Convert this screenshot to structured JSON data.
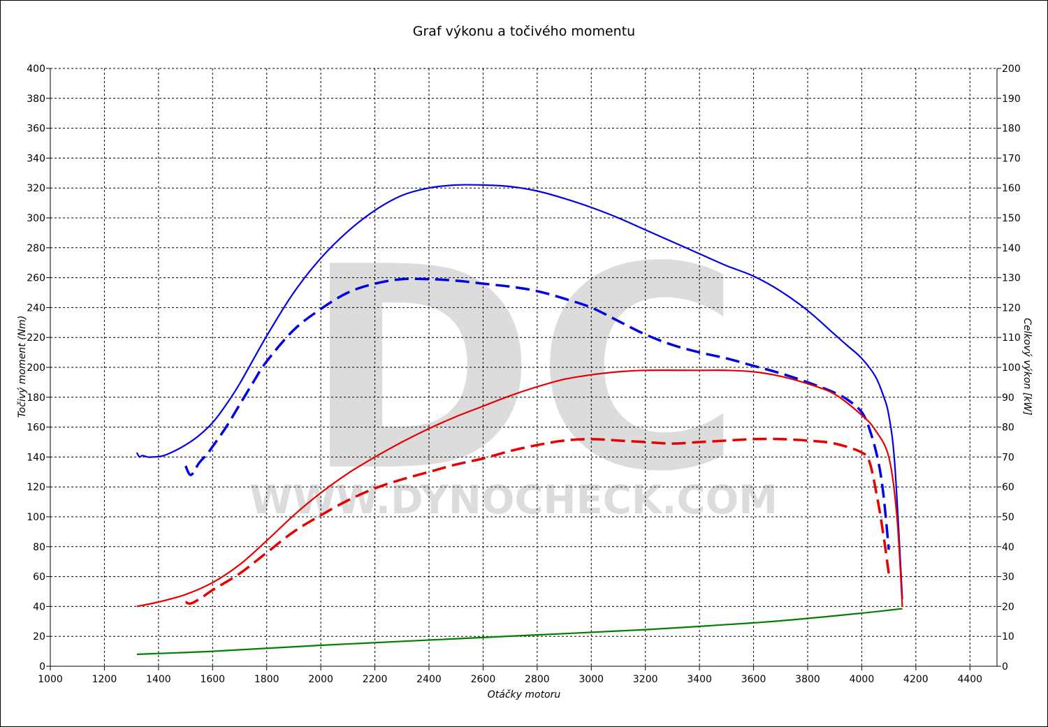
{
  "chart_data": {
    "type": "line",
    "title": "Graf výkonu a točivého momentu",
    "xlabel": "Otáčky motoru",
    "ylabel_left": "Točivý moment (Nm)",
    "ylabel_right": "Celkový výkon [kW]",
    "xlim": [
      1000,
      4500
    ],
    "ylim_left": [
      0,
      400
    ],
    "ylim_right": [
      0,
      200
    ],
    "x_ticks": [
      1000,
      1200,
      1400,
      1600,
      1800,
      2000,
      2200,
      2400,
      2600,
      2800,
      3000,
      3200,
      3400,
      3600,
      3800,
      4000,
      4200,
      4400
    ],
    "y_ticks_left": [
      0,
      20,
      40,
      60,
      80,
      100,
      120,
      140,
      160,
      180,
      200,
      220,
      240,
      260,
      280,
      300,
      320,
      340,
      360,
      380,
      400
    ],
    "y_ticks_right": [
      0,
      10,
      20,
      30,
      40,
      50,
      60,
      70,
      80,
      90,
      100,
      110,
      120,
      130,
      140,
      150,
      160,
      170,
      180,
      190,
      200
    ],
    "grid": true,
    "watermark": {
      "big": "DC",
      "url": "WWW.DYNOCHECK.COM"
    },
    "series": [
      {
        "axis": "left",
        "color": "#0000e6",
        "style": "solid",
        "points": [
          [
            1320,
            143
          ],
          [
            1330,
            140
          ],
          [
            1340,
            141
          ],
          [
            1360,
            140
          ],
          [
            1380,
            140
          ],
          [
            1420,
            141
          ],
          [
            1480,
            146
          ],
          [
            1540,
            153
          ],
          [
            1600,
            163
          ],
          [
            1650,
            175
          ],
          [
            1700,
            189
          ],
          [
            1800,
            221
          ],
          [
            1900,
            250
          ],
          [
            2000,
            273
          ],
          [
            2100,
            291
          ],
          [
            2200,
            305
          ],
          [
            2300,
            315
          ],
          [
            2400,
            320
          ],
          [
            2500,
            322
          ],
          [
            2600,
            322
          ],
          [
            2700,
            321
          ],
          [
            2800,
            318
          ],
          [
            2900,
            313
          ],
          [
            3000,
            307
          ],
          [
            3100,
            300
          ],
          [
            3200,
            292
          ],
          [
            3300,
            284
          ],
          [
            3400,
            276
          ],
          [
            3500,
            268
          ],
          [
            3600,
            261
          ],
          [
            3700,
            251
          ],
          [
            3800,
            238
          ],
          [
            3900,
            222
          ],
          [
            3950,
            214
          ],
          [
            4000,
            206
          ],
          [
            4050,
            194
          ],
          [
            4080,
            181
          ],
          [
            4100,
            168
          ],
          [
            4120,
            140
          ],
          [
            4140,
            80
          ],
          [
            4150,
            45
          ]
        ]
      },
      {
        "axis": "left",
        "color": "#0000e6",
        "style": "dashed",
        "points": [
          [
            1500,
            134
          ],
          [
            1520,
            128
          ],
          [
            1550,
            136
          ],
          [
            1580,
            142
          ],
          [
            1600,
            147
          ],
          [
            1650,
            160
          ],
          [
            1700,
            175
          ],
          [
            1750,
            190
          ],
          [
            1800,
            204
          ],
          [
            1900,
            225
          ],
          [
            2000,
            239
          ],
          [
            2100,
            250
          ],
          [
            2200,
            256
          ],
          [
            2300,
            259
          ],
          [
            2400,
            259
          ],
          [
            2500,
            258
          ],
          [
            2600,
            256
          ],
          [
            2700,
            254
          ],
          [
            2800,
            251
          ],
          [
            2900,
            246
          ],
          [
            3000,
            240
          ],
          [
            3100,
            231
          ],
          [
            3200,
            222
          ],
          [
            3300,
            215
          ],
          [
            3400,
            210
          ],
          [
            3500,
            206
          ],
          [
            3600,
            201
          ],
          [
            3700,
            196
          ],
          [
            3800,
            190
          ],
          [
            3900,
            183
          ],
          [
            3950,
            178
          ],
          [
            4000,
            170
          ],
          [
            4030,
            158
          ],
          [
            4060,
            138
          ],
          [
            4080,
            115
          ],
          [
            4100,
            78
          ]
        ]
      },
      {
        "axis": "right",
        "color": "#e60000",
        "style": "solid",
        "points": [
          [
            1320,
            20
          ],
          [
            1400,
            21.5
          ],
          [
            1500,
            24
          ],
          [
            1600,
            28
          ],
          [
            1700,
            34
          ],
          [
            1800,
            42
          ],
          [
            1900,
            50.5
          ],
          [
            2000,
            58
          ],
          [
            2100,
            64.5
          ],
          [
            2200,
            70
          ],
          [
            2300,
            75
          ],
          [
            2400,
            79.5
          ],
          [
            2500,
            83.5
          ],
          [
            2600,
            87
          ],
          [
            2700,
            90.5
          ],
          [
            2800,
            93.5
          ],
          [
            2900,
            96
          ],
          [
            3000,
            97.5
          ],
          [
            3100,
            98.5
          ],
          [
            3200,
            99
          ],
          [
            3400,
            99
          ],
          [
            3500,
            99
          ],
          [
            3600,
            98.5
          ],
          [
            3700,
            97
          ],
          [
            3800,
            94.5
          ],
          [
            3900,
            91
          ],
          [
            4000,
            84
          ],
          [
            4050,
            79
          ],
          [
            4100,
            70
          ],
          [
            4130,
            50
          ],
          [
            4150,
            20
          ]
        ]
      },
      {
        "axis": "right",
        "color": "#e60000",
        "style": "dashed",
        "points": [
          [
            1500,
            21.5
          ],
          [
            1520,
            21
          ],
          [
            1560,
            23
          ],
          [
            1600,
            25.5
          ],
          [
            1700,
            31
          ],
          [
            1800,
            38
          ],
          [
            1900,
            45
          ],
          [
            2000,
            50.5
          ],
          [
            2100,
            55.5
          ],
          [
            2200,
            59.5
          ],
          [
            2300,
            62.5
          ],
          [
            2400,
            65
          ],
          [
            2500,
            67.5
          ],
          [
            2600,
            69.5
          ],
          [
            2700,
            72
          ],
          [
            2800,
            74
          ],
          [
            2900,
            75.5
          ],
          [
            3000,
            76
          ],
          [
            3100,
            75.5
          ],
          [
            3200,
            75
          ],
          [
            3300,
            74.5
          ],
          [
            3400,
            75
          ],
          [
            3500,
            75.5
          ],
          [
            3600,
            76
          ],
          [
            3700,
            76
          ],
          [
            3800,
            75.5
          ],
          [
            3900,
            74.5
          ],
          [
            4000,
            71.5
          ],
          [
            4030,
            68
          ],
          [
            4060,
            55
          ],
          [
            4080,
            44
          ],
          [
            4100,
            31
          ]
        ]
      },
      {
        "axis": "left",
        "color": "#008000",
        "style": "solid",
        "points": [
          [
            1320,
            8
          ],
          [
            1600,
            10
          ],
          [
            2000,
            14
          ],
          [
            2400,
            17.5
          ],
          [
            2800,
            21
          ],
          [
            3200,
            24.5
          ],
          [
            3600,
            29
          ],
          [
            3800,
            32
          ],
          [
            4000,
            35.5
          ],
          [
            4150,
            38.5
          ]
        ]
      }
    ]
  }
}
